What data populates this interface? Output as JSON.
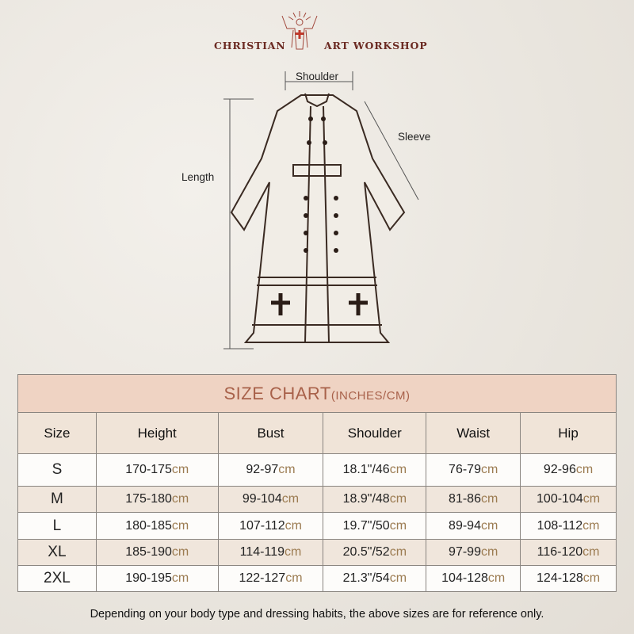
{
  "brand": {
    "left": "CHRISTIAN",
    "right": "ART WORKSHOP",
    "logo_icon": "jesus-with-cross-icon"
  },
  "measure_labels": {
    "shoulder": "Shoulder",
    "sleeve": "Sleeve",
    "length": "Length"
  },
  "table": {
    "title": "SIZE CHART",
    "title_units": "(INCHES/CM)",
    "headers": [
      "Size",
      "Height",
      "Bust",
      "Shoulder",
      "Waist",
      "Hip"
    ],
    "unit": "cm",
    "rows": [
      {
        "size": "S",
        "height": "170-175",
        "bust": "92-97",
        "shoulder": "18.1\"/46",
        "waist": "76-79",
        "hip": "92-96"
      },
      {
        "size": "M",
        "height": "175-180",
        "bust": "99-104",
        "shoulder": "18.9\"/48",
        "waist": "81-86",
        "hip": "100-104"
      },
      {
        "size": "L",
        "height": "180-185",
        "bust": "107-112",
        "shoulder": "19.7\"/50",
        "waist": "89-94",
        "hip": "108-112"
      },
      {
        "size": "XL",
        "height": "185-190",
        "bust": "114-119",
        "shoulder": "20.5\"/52",
        "waist": "97-99",
        "hip": "116-120"
      },
      {
        "size": "2XL",
        "height": "190-195",
        "bust": "122-127",
        "shoulder": "21.3\"/54",
        "waist": "104-128",
        "hip": "124-128"
      }
    ]
  },
  "footer": "Depending on your body type and dressing habits, the above sizes are for reference only.",
  "colors": {
    "title_bg": "#efd3c3",
    "title_text": "#a8614a",
    "unit_text": "#9c7c52",
    "brand": "#6b2a22"
  }
}
